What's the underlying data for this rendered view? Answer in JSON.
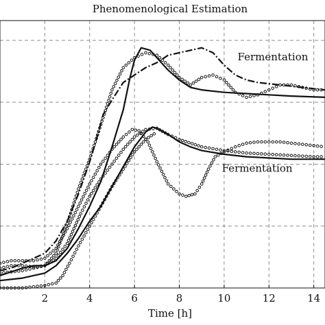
{
  "chart_data": {
    "type": "line",
    "title": "Phenomenological Estimation",
    "xlabel": "Time [h]",
    "ylabel": "",
    "xlim": [
      0,
      14.5
    ],
    "ylim": [
      0,
      1.08
    ],
    "x_ticks": [
      2,
      4,
      6,
      8,
      10,
      12,
      14
    ],
    "x_tick_labels": [
      "2",
      "4",
      "6",
      "8",
      "10",
      "12",
      "14"
    ],
    "y_grid": [
      0.25,
      0.5,
      0.75,
      1.0
    ],
    "grid": true,
    "annotations": [
      {
        "text": "Fermentation",
        "x": 10.6,
        "y": 0.92
      },
      {
        "text": "Fermentation",
        "x": 9.9,
        "y": 0.47
      }
    ],
    "series": [
      {
        "style": "solid",
        "x": [
          0,
          0.5,
          1,
          1.5,
          2,
          2.5,
          3,
          3.5,
          4,
          4.5,
          5,
          5.5,
          5.8,
          6,
          6.3,
          6.7,
          7,
          7.5,
          8,
          8.5,
          9,
          10,
          11,
          12,
          13,
          14.5
        ],
        "y": [
          0.05,
          0.065,
          0.08,
          0.09,
          0.09,
          0.11,
          0.16,
          0.24,
          0.33,
          0.43,
          0.57,
          0.72,
          0.85,
          0.92,
          0.97,
          0.96,
          0.93,
          0.88,
          0.84,
          0.81,
          0.8,
          0.79,
          0.785,
          0.78,
          0.775,
          0.77
        ]
      },
      {
        "style": "dotted",
        "x": [
          0,
          0.5,
          1,
          1.5,
          2,
          2.5,
          3,
          3.5,
          4,
          4.5,
          5,
          5.5,
          6,
          6.5,
          7,
          7.5,
          8,
          8.5,
          9,
          9.5,
          10,
          10.5,
          11,
          11.5,
          12,
          12.5,
          13,
          13.5,
          14,
          14.5
        ],
        "y": [
          0.08,
          0.09,
          0.09,
          0.085,
          0.09,
          0.14,
          0.26,
          0.4,
          0.52,
          0.66,
          0.8,
          0.89,
          0.93,
          0.95,
          0.94,
          0.9,
          0.85,
          0.82,
          0.85,
          0.86,
          0.84,
          0.79,
          0.77,
          0.78,
          0.8,
          0.82,
          0.82,
          0.81,
          0.8,
          0.8
        ]
      },
      {
        "style": "dashdot",
        "x": [
          0,
          0.5,
          1,
          1.5,
          2,
          2.5,
          3,
          3.5,
          4,
          4.3,
          4.6,
          5,
          5.5,
          6,
          6.5,
          7,
          7.5,
          8,
          8.5,
          9,
          9.5,
          10,
          10.5,
          11,
          11.5,
          12,
          12.5,
          13,
          13.5,
          14,
          14.5
        ],
        "y": [
          0.07,
          0.08,
          0.1,
          0.12,
          0.14,
          0.19,
          0.27,
          0.38,
          0.51,
          0.6,
          0.7,
          0.76,
          0.83,
          0.86,
          0.89,
          0.91,
          0.94,
          0.95,
          0.96,
          0.97,
          0.95,
          0.9,
          0.86,
          0.84,
          0.83,
          0.825,
          0.82,
          0.815,
          0.81,
          0.805,
          0.8
        ]
      },
      {
        "style": "solid",
        "x": [
          0,
          0.5,
          1,
          1.5,
          2,
          2.5,
          3,
          3.5,
          4,
          4.5,
          5,
          5.5,
          6,
          6.5,
          6.8,
          7,
          7.5,
          8,
          8.5,
          9,
          10,
          11,
          12,
          13,
          14,
          14.5
        ],
        "y": [
          0.03,
          0.035,
          0.04,
          0.05,
          0.06,
          0.09,
          0.14,
          0.2,
          0.27,
          0.33,
          0.41,
          0.49,
          0.57,
          0.63,
          0.65,
          0.645,
          0.62,
          0.59,
          0.57,
          0.555,
          0.54,
          0.53,
          0.525,
          0.52,
          0.52,
          0.52
        ]
      },
      {
        "style": "dotted",
        "x": [
          0,
          0.5,
          1,
          1.5,
          2,
          2.5,
          3,
          3.5,
          4,
          4.5,
          5,
          5.5,
          5.9,
          6.2,
          6.6,
          7,
          7.5,
          8,
          8.3,
          8.7,
          9,
          9.3,
          9.6,
          10,
          10.5,
          11,
          11.5,
          12,
          12.5,
          13,
          13.5,
          14,
          14.5
        ],
        "y": [
          0.1,
          0.11,
          0.11,
          0.11,
          0.12,
          0.16,
          0.24,
          0.33,
          0.42,
          0.5,
          0.56,
          0.61,
          0.64,
          0.635,
          0.59,
          0.51,
          0.42,
          0.38,
          0.37,
          0.38,
          0.42,
          0.48,
          0.53,
          0.55,
          0.57,
          0.585,
          0.59,
          0.59,
          0.59,
          0.585,
          0.58,
          0.575,
          0.57
        ]
      },
      {
        "style": "dotted",
        "x": [
          0,
          0.5,
          1,
          1.5,
          2,
          2.5,
          3,
          3.3,
          3.6,
          4,
          4.5,
          5,
          5.5,
          6,
          6.5,
          7,
          7.5,
          8,
          9,
          10,
          11,
          12,
          13,
          14,
          14.5
        ],
        "y": [
          0.06,
          0.065,
          0.07,
          0.08,
          0.09,
          0.12,
          0.18,
          0.24,
          0.3,
          0.37,
          0.44,
          0.5,
          0.56,
          0.61,
          0.64,
          0.645,
          0.62,
          0.6,
          0.57,
          0.555,
          0.545,
          0.54,
          0.535,
          0.53,
          0.53
        ]
      },
      {
        "style": "dotted",
        "x": [
          0,
          0.5,
          1,
          1.5,
          2,
          2.5,
          2.8,
          3.1,
          3.5,
          4,
          4.5,
          5,
          5.5,
          6,
          6.5,
          7
        ],
        "y": [
          0.0,
          0.0,
          0.0,
          0.005,
          0.01,
          0.02,
          0.05,
          0.1,
          0.17,
          0.25,
          0.33,
          0.41,
          0.48,
          0.55,
          0.6,
          0.63
        ]
      }
    ]
  }
}
